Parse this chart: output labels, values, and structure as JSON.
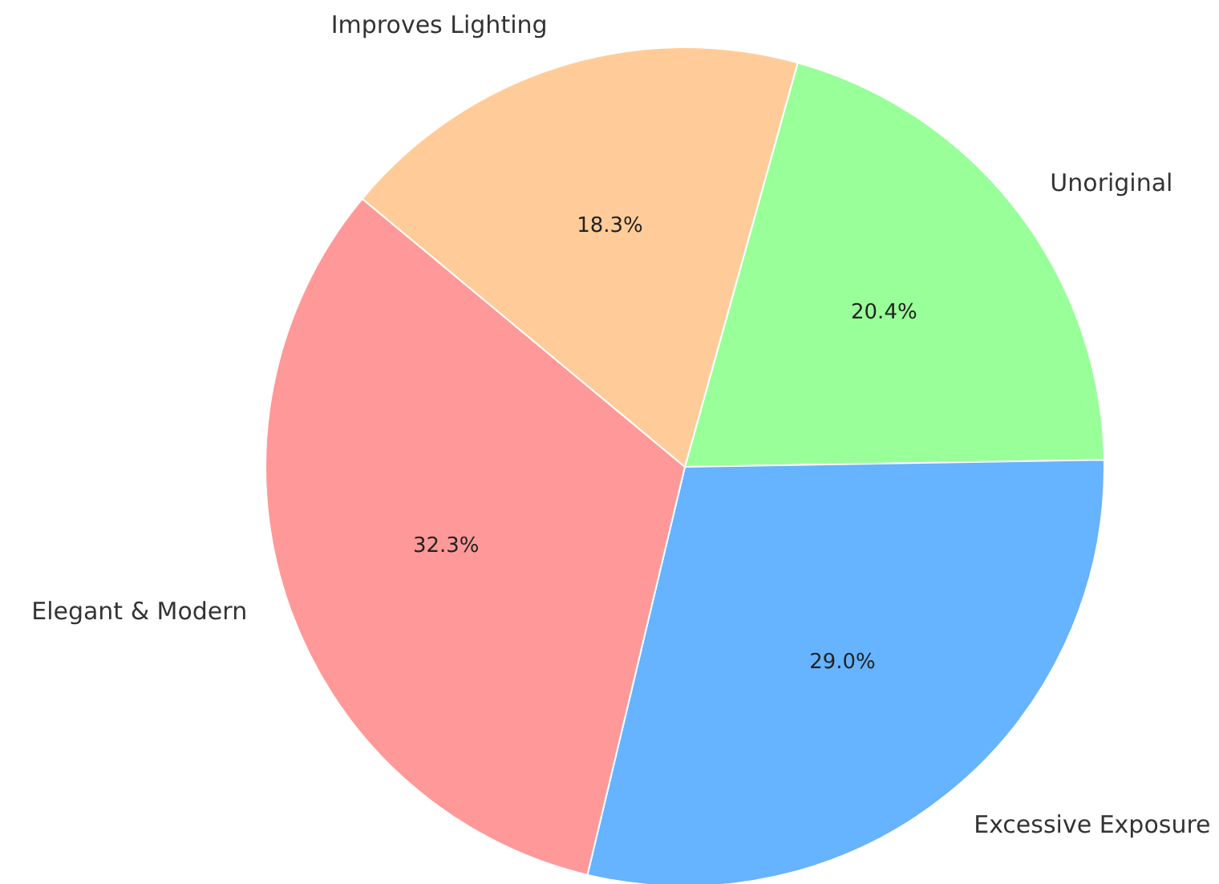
{
  "chart_data": {
    "type": "pie",
    "categories": [
      "Unoriginal",
      "Excessive Exposure",
      "Elegant & Modern",
      "Improves Lighting"
    ],
    "values": [
      20.4,
      29.0,
      32.3,
      18.3
    ],
    "colors": [
      "#99ff99",
      "#66b3ff",
      "#ff9999",
      "#ffcc99"
    ],
    "value_labels": [
      "20.4%",
      "29.0%",
      "32.3%",
      "18.3%"
    ],
    "legend": false
  }
}
